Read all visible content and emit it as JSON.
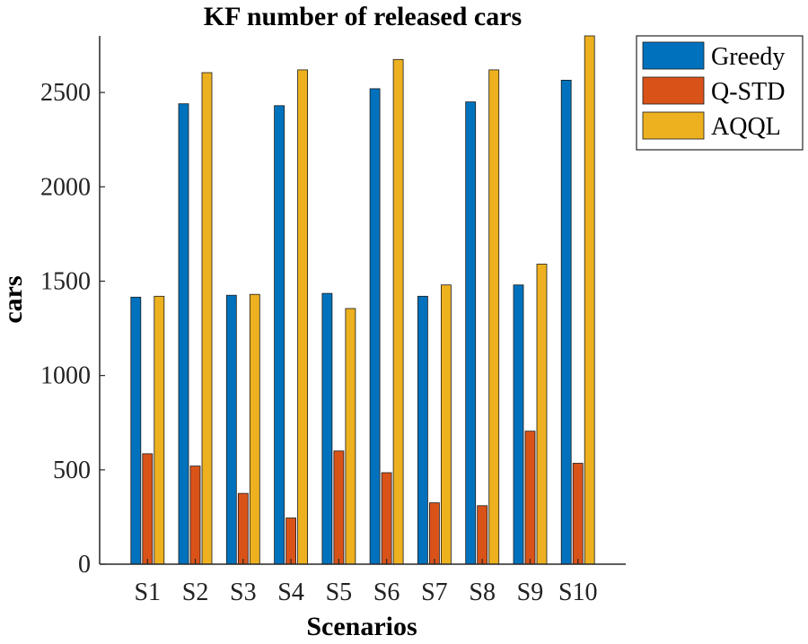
{
  "chart_data": {
    "type": "bar",
    "title": "KF number of released cars",
    "xlabel": "Scenarios",
    "ylabel": "cars",
    "categories": [
      "S1",
      "S2",
      "S3",
      "S4",
      "S5",
      "S6",
      "S7",
      "S8",
      "S9",
      "S10"
    ],
    "series": [
      {
        "name": "Greedy",
        "color": "#0072BD",
        "values": [
          1415,
          2440,
          1425,
          2430,
          1435,
          2520,
          1420,
          2450,
          1480,
          2565
        ]
      },
      {
        "name": "Q-STD",
        "color": "#D95319",
        "values": [
          585,
          520,
          375,
          245,
          600,
          485,
          325,
          310,
          705,
          535
        ]
      },
      {
        "name": "AQQL",
        "color": "#EDB120",
        "values": [
          1420,
          2605,
          1430,
          2620,
          1355,
          2675,
          1480,
          2620,
          1590,
          2800
        ]
      }
    ],
    "yticks": [
      0,
      500,
      1000,
      1500,
      2000,
      2500
    ],
    "ylim": [
      0,
      2800
    ],
    "grid": false,
    "legend_position": "top-right"
  }
}
